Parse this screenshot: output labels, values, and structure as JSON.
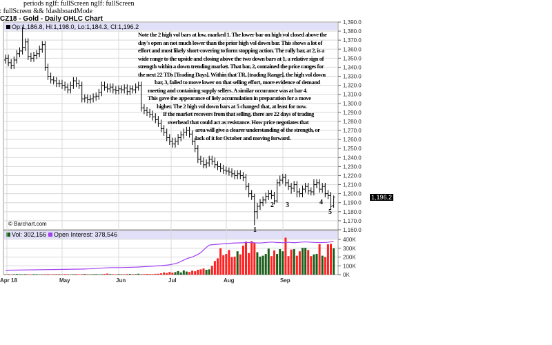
{
  "debug_lines": [
    "periods ngIf: fullScreen ngIf: fullScreen",
    "f: fullScreen && !dashboardMode"
  ],
  "title": "CZ18 - Gold - Daily OHLC Chart",
  "price_header": "Op:1,186.8, Hi:1,198.0, Lo:1,184.3, Cl:1,196.2",
  "volume_header": {
    "vol": "Vol: 302,156",
    "oi": "Open Interest: 378,546"
  },
  "copyright": "© Barchart.com",
  "last_price_tag": "1,196.2",
  "annotation_lines": [
    "Note the 2 high vol bars at low, marked 1.  The lower bar on high vol closed above the",
    "day's open an not much lower than the prior high vol down bar.  This shows a lot of",
    "effort and most likely short-covering to form stopping action.  The rally bar, at 2, is a",
    "wide range to the upside and closing above the two down bars at 1, a relative sign of",
    "strength within a down trending market.  That bar, 2, contained the price ranges for",
    "the next 22 TDs [Trading Days].  Within that TR, [trading Range], the high vol down",
    "bar, 3, failed to move lower on that selling effort, more evidence of demand",
    "meeting and containing supply sellers.  A similar occurance was at bar 4.",
    "This gave the appearance of liely accumulation in preparation for a move",
    "higher.  The 2 high vol down bars at 5 changed that, at least for now.",
    "If the market recovers from that selling, there are 22 days of trading",
    "overhead that could act as resistance.  How price negotiates that",
    "area will give a clearer understanding of the strength, or",
    "lack of it for October and moving forward."
  ],
  "bar_markers": [
    "1",
    "2",
    "3",
    "4",
    "5"
  ],
  "colors": {
    "up_volume": "#1a5e1a",
    "down_volume": "#ff2020",
    "open_interest": "#a040f0",
    "header_bg": "#e0e0f8",
    "grid": "#d8d8d8"
  },
  "chart_data": {
    "type": "ohlc",
    "title": "CZ18 - Gold - Daily OHLC Chart",
    "x_tick_labels": [
      "Apr 18",
      "May",
      "Jun",
      "Jul",
      "Aug",
      "Sep"
    ],
    "price_ticks": [
      "1,390.0",
      "1,380.0",
      "1,370.0",
      "1,360.0",
      "1,350.0",
      "1,340.0",
      "1,330.0",
      "1,320.0",
      "1,310.0",
      "1,300.0",
      "1,290.0",
      "1,280.0",
      "1,270.0",
      "1,260.0",
      "1,250.0",
      "1,240.0",
      "1,230.0",
      "1,220.0",
      "1,210.0",
      "1,200.0",
      "1,190.0",
      "1,180.0",
      "1,170.0",
      "1,160.0"
    ],
    "ylim": [
      1160,
      1390
    ],
    "volume_ticks": [
      "400K",
      "300K",
      "200K",
      "100K",
      "0K"
    ],
    "volume_ylim_k": [
      0,
      400
    ],
    "grid": true,
    "ohlc": [
      [
        1348,
        1354,
        1344,
        1350
      ],
      [
        1350,
        1354,
        1341,
        1345
      ],
      [
        1345,
        1349,
        1338,
        1342
      ],
      [
        1342,
        1352,
        1338,
        1348
      ],
      [
        1348,
        1359,
        1344,
        1355
      ],
      [
        1355,
        1362,
        1351,
        1358
      ],
      [
        1358,
        1385,
        1354,
        1362
      ],
      [
        1362,
        1372,
        1358,
        1368
      ],
      [
        1368,
        1372,
        1348,
        1352
      ],
      [
        1352,
        1356,
        1346,
        1350
      ],
      [
        1350,
        1357,
        1346,
        1353
      ],
      [
        1353,
        1359,
        1349,
        1355
      ],
      [
        1355,
        1364,
        1351,
        1360
      ],
      [
        1360,
        1369,
        1356,
        1365
      ],
      [
        1365,
        1369,
        1336,
        1340
      ],
      [
        1340,
        1344,
        1326,
        1330
      ],
      [
        1330,
        1334,
        1322,
        1326
      ],
      [
        1326,
        1330,
        1321,
        1325
      ],
      [
        1325,
        1329,
        1318,
        1322
      ],
      [
        1322,
        1326,
        1318,
        1322
      ],
      [
        1322,
        1326,
        1316,
        1320
      ],
      [
        1320,
        1324,
        1314,
        1318
      ],
      [
        1318,
        1322,
        1311,
        1315
      ],
      [
        1315,
        1324,
        1311,
        1320
      ],
      [
        1320,
        1329,
        1316,
        1325
      ],
      [
        1325,
        1329,
        1318,
        1322
      ],
      [
        1322,
        1326,
        1316,
        1320
      ],
      [
        1320,
        1324,
        1301,
        1305
      ],
      [
        1305,
        1310,
        1301,
        1306
      ],
      [
        1306,
        1310,
        1300,
        1304
      ],
      [
        1304,
        1309,
        1300,
        1305
      ],
      [
        1305,
        1311,
        1301,
        1307
      ],
      [
        1307,
        1312,
        1303,
        1308
      ],
      [
        1308,
        1316,
        1304,
        1312
      ],
      [
        1312,
        1324,
        1308,
        1320
      ],
      [
        1320,
        1324,
        1314,
        1318
      ],
      [
        1318,
        1322,
        1312,
        1316
      ],
      [
        1316,
        1322,
        1312,
        1318
      ],
      [
        1318,
        1322,
        1311,
        1315
      ],
      [
        1315,
        1319,
        1310,
        1314
      ],
      [
        1314,
        1320,
        1310,
        1316
      ],
      [
        1316,
        1320,
        1311,
        1315
      ],
      [
        1315,
        1321,
        1311,
        1317
      ],
      [
        1317,
        1321,
        1309,
        1313
      ],
      [
        1313,
        1320,
        1309,
        1316
      ],
      [
        1316,
        1320,
        1311,
        1315
      ],
      [
        1315,
        1322,
        1311,
        1318
      ],
      [
        1318,
        1324,
        1314,
        1320
      ],
      [
        1320,
        1324,
        1291,
        1295
      ],
      [
        1295,
        1299,
        1288,
        1292
      ],
      [
        1292,
        1296,
        1286,
        1290
      ],
      [
        1290,
        1294,
        1284,
        1288
      ],
      [
        1288,
        1292,
        1281,
        1285
      ],
      [
        1285,
        1289,
        1278,
        1282
      ],
      [
        1282,
        1286,
        1274,
        1278
      ],
      [
        1278,
        1282,
        1268,
        1272
      ],
      [
        1272,
        1276,
        1264,
        1268
      ],
      [
        1268,
        1272,
        1258,
        1262
      ],
      [
        1262,
        1266,
        1254,
        1258
      ],
      [
        1258,
        1262,
        1251,
        1255
      ],
      [
        1255,
        1262,
        1251,
        1258
      ],
      [
        1258,
        1266,
        1254,
        1262
      ],
      [
        1262,
        1269,
        1258,
        1265
      ],
      [
        1265,
        1272,
        1261,
        1268
      ],
      [
        1268,
        1274,
        1264,
        1270
      ],
      [
        1270,
        1274,
        1262,
        1266
      ],
      [
        1266,
        1270,
        1254,
        1258
      ],
      [
        1258,
        1262,
        1246,
        1250
      ],
      [
        1250,
        1254,
        1234,
        1238
      ],
      [
        1238,
        1242,
        1232,
        1236
      ],
      [
        1236,
        1240,
        1228,
        1232
      ],
      [
        1232,
        1238,
        1228,
        1234
      ],
      [
        1234,
        1242,
        1230,
        1238
      ],
      [
        1238,
        1242,
        1232,
        1236
      ],
      [
        1236,
        1240,
        1228,
        1232
      ],
      [
        1232,
        1236,
        1226,
        1230
      ],
      [
        1230,
        1234,
        1224,
        1228
      ],
      [
        1228,
        1232,
        1222,
        1226
      ],
      [
        1226,
        1230,
        1221,
        1225
      ],
      [
        1225,
        1229,
        1220,
        1224
      ],
      [
        1224,
        1228,
        1218,
        1222
      ],
      [
        1222,
        1226,
        1216,
        1220
      ],
      [
        1220,
        1226,
        1216,
        1222
      ],
      [
        1222,
        1226,
        1216,
        1220
      ],
      [
        1220,
        1224,
        1214,
        1218
      ],
      [
        1218,
        1222,
        1204,
        1208
      ],
      [
        1208,
        1212,
        1196,
        1200
      ],
      [
        1200,
        1204,
        1193,
        1197
      ],
      [
        1197,
        1200,
        1165,
        1180
      ],
      [
        1180,
        1190,
        1172,
        1186
      ],
      [
        1186,
        1194,
        1182,
        1190
      ],
      [
        1190,
        1197,
        1186,
        1193
      ],
      [
        1193,
        1201,
        1189,
        1197
      ],
      [
        1197,
        1204,
        1193,
        1200
      ],
      [
        1200,
        1204,
        1194,
        1198
      ],
      [
        1198,
        1202,
        1188,
        1192
      ],
      [
        1192,
        1216,
        1190,
        1212
      ],
      [
        1212,
        1220,
        1208,
        1215
      ],
      [
        1215,
        1222,
        1211,
        1218
      ],
      [
        1218,
        1222,
        1208,
        1212
      ],
      [
        1212,
        1216,
        1204,
        1208
      ],
      [
        1208,
        1212,
        1200,
        1206
      ],
      [
        1206,
        1214,
        1202,
        1210
      ],
      [
        1210,
        1214,
        1196,
        1202
      ],
      [
        1202,
        1206,
        1196,
        1200
      ],
      [
        1200,
        1209,
        1196,
        1205
      ],
      [
        1205,
        1212,
        1201,
        1208
      ],
      [
        1208,
        1212,
        1199,
        1203
      ],
      [
        1203,
        1207,
        1198,
        1202
      ],
      [
        1202,
        1216,
        1198,
        1210
      ],
      [
        1210,
        1216,
        1206,
        1212
      ],
      [
        1212,
        1216,
        1201,
        1205
      ],
      [
        1205,
        1212,
        1201,
        1208
      ],
      [
        1208,
        1212,
        1196,
        1200
      ],
      [
        1200,
        1204,
        1194,
        1198
      ],
      [
        1198,
        1202,
        1182,
        1186
      ],
      [
        1186.8,
        1198,
        1184.3,
        1196.2
      ]
    ],
    "volume_k": [
      4,
      6,
      3,
      5,
      7,
      5,
      4,
      6,
      5,
      4,
      6,
      5,
      3,
      4,
      5,
      6,
      4,
      5,
      6,
      5,
      4,
      6,
      5,
      3,
      5,
      6,
      4,
      5,
      7,
      5,
      4,
      5,
      6,
      4,
      5,
      8,
      12,
      6,
      5,
      4,
      6,
      5,
      4,
      7,
      8,
      5,
      6,
      10,
      5,
      6,
      8,
      7,
      6,
      9,
      10,
      15,
      25,
      18,
      30,
      22,
      28,
      40,
      25,
      48,
      35,
      30,
      45,
      38,
      55,
      60,
      70,
      55,
      60,
      100,
      155,
      185,
      300,
      220,
      235,
      280,
      200,
      205,
      265,
      230,
      330,
      375,
      245,
      380,
      360,
      255,
      205,
      215,
      235,
      295,
      210,
      275,
      235,
      290,
      265,
      420,
      210,
      285,
      290,
      215,
      265,
      305,
      305,
      280,
      210,
      230,
      235,
      345,
      215,
      200,
      345,
      350,
      300
    ],
    "open_interest_k": [
      50,
      50,
      51,
      51,
      52,
      52,
      53,
      53,
      54,
      54,
      55,
      55,
      56,
      56,
      57,
      57,
      58,
      58,
      59,
      59,
      60,
      60,
      61,
      61,
      62,
      62,
      63,
      63,
      64,
      65,
      66,
      68,
      70,
      72,
      74,
      76,
      78,
      79,
      80,
      80,
      80,
      80,
      81,
      82,
      83,
      84,
      85,
      86,
      88,
      90,
      92,
      94,
      96,
      98,
      100,
      102,
      105,
      108,
      112,
      118,
      125,
      135,
      150,
      165,
      180,
      192,
      200,
      215,
      230,
      250,
      280,
      310,
      335,
      340,
      342,
      345,
      348,
      350,
      352,
      355,
      358,
      360,
      360,
      362,
      362,
      365,
      365,
      365,
      362,
      360,
      360,
      362,
      365,
      368,
      370,
      368,
      365,
      365,
      362,
      365,
      368,
      365,
      363,
      365,
      368,
      370,
      372,
      370,
      368,
      366,
      365,
      364,
      365,
      366,
      368,
      372,
      378
    ]
  }
}
